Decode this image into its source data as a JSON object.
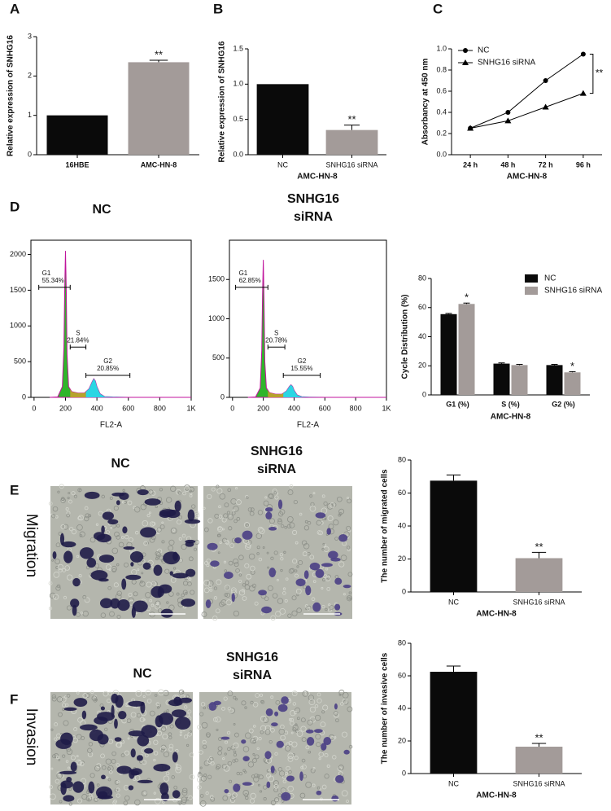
{
  "panel_labels": [
    "A",
    "B",
    "C",
    "D",
    "E",
    "F"
  ],
  "micrographs": [
    {
      "row_label": "Migration",
      "columns": [
        "NC",
        "SNHG16 siRNA"
      ]
    },
    {
      "row_label": "Invasion",
      "columns": [
        "NC",
        "SNHG16 siRNA"
      ]
    }
  ],
  "chart_data": [
    {
      "type": "bar",
      "ylabel": "Relative expression of SNHG16",
      "categories": [
        "16HBE",
        "AMC-HN-8"
      ],
      "values": [
        1,
        2.35
      ],
      "errors": [
        0,
        0.05
      ],
      "significance": [
        null,
        "**"
      ],
      "colors": [
        "#0a0a0a",
        "#a39b99"
      ],
      "ylim": [
        0,
        3
      ],
      "yticks": [
        0,
        1,
        2,
        3
      ]
    },
    {
      "type": "bar",
      "ylabel": "Relative expression of SNHG16",
      "xlabel": "AMC-HN-8",
      "categories": [
        "NC",
        "SNHG16 siRNA"
      ],
      "values": [
        1,
        0.35
      ],
      "errors": [
        0,
        0.07
      ],
      "significance": [
        null,
        "**"
      ],
      "colors": [
        "#0a0a0a",
        "#a39b99"
      ],
      "ylim": [
        0,
        1.5
      ],
      "yticks": [
        {
          "value": 0,
          "label": "0.0"
        },
        0.5,
        {
          "value": 1,
          "label": "1.0"
        },
        1.5
      ]
    },
    {
      "type": "line",
      "ylabel": "Absorbancy at 450 nm",
      "xlabel": "AMC-HN-8",
      "categories": [
        "24 h",
        "48 h",
        "72 h",
        "96 h"
      ],
      "series": [
        {
          "name": "NC",
          "color": "#000000",
          "marker": "circle",
          "values": [
            0.25,
            0.4,
            0.7,
            0.95
          ]
        },
        {
          "name": "SNHG16 siRNA",
          "color": "#000000",
          "marker": "triangle",
          "values": [
            0.25,
            0.32,
            0.45,
            0.58
          ]
        }
      ],
      "significance": "**",
      "legend": "upper left",
      "ylim": [
        0,
        1
      ],
      "yticks": [
        {
          "value": 0,
          "label": "0.0"
        },
        0.2,
        0.4,
        0.6,
        0.8,
        {
          "value": 1,
          "label": "1.0"
        }
      ]
    },
    {
      "type": "flow",
      "title": "NC",
      "xlabel": "FL2-A",
      "x": [
        100,
        150,
        180,
        190,
        195,
        200,
        205,
        210,
        220,
        240,
        280,
        320,
        350,
        370,
        380,
        390,
        400,
        420,
        450,
        500,
        600,
        1000
      ],
      "values": [
        0,
        5,
        150,
        700,
        1500,
        2050,
        1500,
        600,
        150,
        80,
        60,
        60,
        120,
        220,
        260,
        230,
        150,
        50,
        10,
        5,
        0,
        0
      ],
      "gates": [
        {
          "name": "G1",
          "value": 55.34,
          "label": "55.34%",
          "x": [
            30,
            230
          ]
        },
        {
          "name": "S",
          "value": 21.84,
          "label": "21.84%",
          "x": [
            230,
            330
          ]
        },
        {
          "name": "G2",
          "value": 20.85,
          "label": "20.85%",
          "x": [
            330,
            610
          ]
        }
      ],
      "xlim": [
        -20,
        1000
      ],
      "xticks": [
        0,
        200,
        400,
        600,
        800,
        {
          "value": 1000,
          "label": "1K"
        }
      ],
      "ylim": [
        0,
        2200
      ],
      "yticks": [
        0,
        500,
        1000,
        1500,
        2000
      ]
    },
    {
      "type": "flow",
      "title": "SNHG16 siRNA",
      "xlabel": "FL2-A",
      "x": [
        100,
        150,
        180,
        190,
        195,
        200,
        205,
        210,
        220,
        240,
        280,
        320,
        350,
        370,
        380,
        390,
        400,
        420,
        450,
        500,
        600,
        1000
      ],
      "values": [
        0,
        5,
        120,
        600,
        1300,
        1750,
        1200,
        450,
        120,
        60,
        40,
        40,
        80,
        140,
        160,
        140,
        90,
        30,
        8,
        3,
        0,
        0
      ],
      "gates": [
        {
          "name": "G1",
          "value": 62.85,
          "label": "62.85%",
          "x": [
            20,
            230
          ]
        },
        {
          "name": "S",
          "value": 20.78,
          "label": "20.78%",
          "x": [
            230,
            340
          ]
        },
        {
          "name": "G2",
          "value": 15.55,
          "label": "15.55%",
          "x": [
            330,
            570
          ]
        }
      ],
      "xlim": [
        -20,
        1000
      ],
      "xticks": [
        0,
        200,
        400,
        600,
        800,
        {
          "value": 1000,
          "label": "1K"
        }
      ],
      "ylim": [
        0,
        2000
      ],
      "yticks": [
        0,
        500,
        1000,
        1500
      ]
    },
    {
      "type": "grouped_bar",
      "ylabel": "Cycle Distribution (%)",
      "xlabel": "AMC-HN-8",
      "categories": [
        "G1 (%)",
        "S (%)",
        "G2 (%)"
      ],
      "series": [
        {
          "name": "NC",
          "color": "#0a0a0a",
          "values": [
            55.5,
            21.5,
            20.5
          ],
          "errors": [
            0.5,
            0.5,
            0.5
          ],
          "significance": [
            null,
            null,
            null
          ]
        },
        {
          "name": "SNHG16 siRNA",
          "color": "#a39b99",
          "values": [
            62.5,
            20.5,
            15.5
          ],
          "errors": [
            0.6,
            0.5,
            0.5
          ],
          "significance": [
            "*",
            null,
            "*"
          ]
        }
      ],
      "legend": "upper right",
      "ylim": [
        0,
        80
      ],
      "yticks": [
        0,
        20,
        40,
        60,
        80
      ]
    },
    {
      "type": "bar",
      "ylabel": "The number of migrated cells",
      "xlabel": "AMC-HN-8",
      "categories": [
        "NC",
        "SNHG16 siRNA"
      ],
      "values": [
        67.5,
        20.5
      ],
      "errors": [
        3.5,
        3.5
      ],
      "significance": [
        null,
        "**"
      ],
      "colors": [
        "#0a0a0a",
        "#a39b99"
      ],
      "ylim": [
        0,
        80
      ],
      "yticks": [
        0,
        20,
        40,
        60,
        80
      ]
    },
    {
      "type": "bar",
      "ylabel": "The number of invasive cells",
      "xlabel": "AMC-HN-8",
      "categories": [
        "NC",
        "SNHG16 siRNA"
      ],
      "values": [
        62.5,
        16.5
      ],
      "errors": [
        3.5,
        2
      ],
      "significance": [
        null,
        "**"
      ],
      "colors": [
        "#0a0a0a",
        "#a39b99"
      ],
      "ylim": [
        0,
        80
      ],
      "yticks": [
        0,
        20,
        40,
        60,
        80
      ]
    }
  ]
}
